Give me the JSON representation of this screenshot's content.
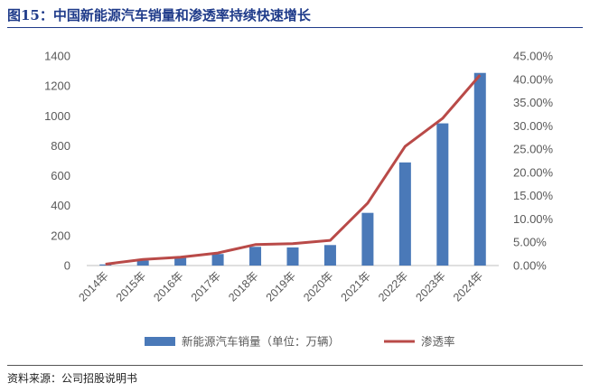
{
  "figure": {
    "title": "图15：中国新能源汽车销量和渗透率持续快速增长",
    "source": "资料来源：公司招股说明书"
  },
  "colors": {
    "bar": "#4a79b8",
    "line": "#b94a48",
    "axis_text": "#595959"
  },
  "chart_data": {
    "type": "bar+line",
    "categories": [
      "2014年",
      "2015年",
      "2016年",
      "2017年",
      "2018年",
      "2019年",
      "2020年",
      "2021年",
      "2022年",
      "2023年",
      "2024年"
    ],
    "series": [
      {
        "name": "新能源汽车销量（单位：万辆）",
        "type": "bar",
        "axis": "left",
        "values": [
          7.5,
          33,
          51,
          77,
          125,
          121,
          137,
          352,
          689,
          950,
          1287
        ]
      },
      {
        "name": "渗透率",
        "type": "line",
        "axis": "right",
        "values": [
          0.3,
          1.3,
          1.8,
          2.7,
          4.5,
          4.7,
          5.4,
          13.4,
          25.6,
          31.6,
          40.9
        ]
      }
    ],
    "y_left": {
      "min": 0,
      "max": 1400,
      "ticks": [
        "0",
        "200",
        "400",
        "600",
        "800",
        "1000",
        "1200",
        "1400"
      ]
    },
    "y_right": {
      "min": 0,
      "max": 45,
      "ticks": [
        "0.00%",
        "5.00%",
        "10.00%",
        "15.00%",
        "20.00%",
        "25.00%",
        "30.00%",
        "35.00%",
        "40.00%",
        "45.00%"
      ]
    },
    "legend": {
      "position": "bottom",
      "bar_label": "新能源汽车销量（单位：万辆）",
      "line_label": "渗透率"
    },
    "grid": false
  }
}
